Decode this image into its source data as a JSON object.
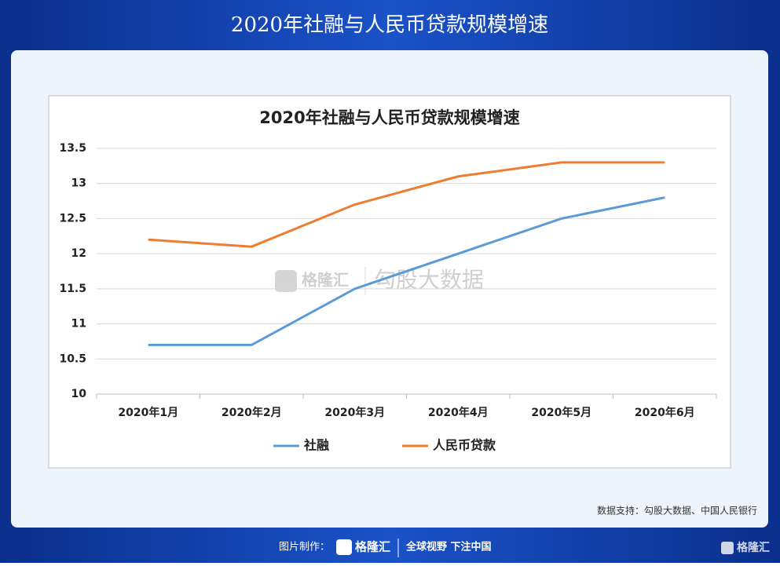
{
  "header": {
    "title": "2020年社融与人民币贷款规模增速"
  },
  "chart_data": {
    "type": "line",
    "title": "2020年社融与人民币贷款规模增速",
    "categories": [
      "2020年1月",
      "2020年2月",
      "2020年3月",
      "2020年4月",
      "2020年5月",
      "2020年6月"
    ],
    "series": [
      {
        "name": "社融",
        "color": "#5b9bd5",
        "values": [
          10.7,
          10.7,
          11.5,
          12.0,
          12.5,
          12.8
        ]
      },
      {
        "name": "人民币贷款",
        "color": "#ed7d31",
        "values": [
          12.2,
          12.1,
          12.7,
          13.1,
          13.3,
          13.3
        ]
      }
    ],
    "ylim": [
      10,
      13.5
    ],
    "yticks": [
      10,
      10.5,
      11,
      11.5,
      12,
      12.5,
      13,
      13.5
    ],
    "grid": true,
    "legend": "bottom"
  },
  "watermark": {
    "logo": "格隆汇",
    "text": "勾股大数据"
  },
  "source": "数据支持：勾股大数据、中国人民银行",
  "footer": {
    "made_by": "图片制作：",
    "logo": "格隆汇",
    "slogan": "全球视野 下注中国",
    "corner_logo": "格隆汇"
  }
}
